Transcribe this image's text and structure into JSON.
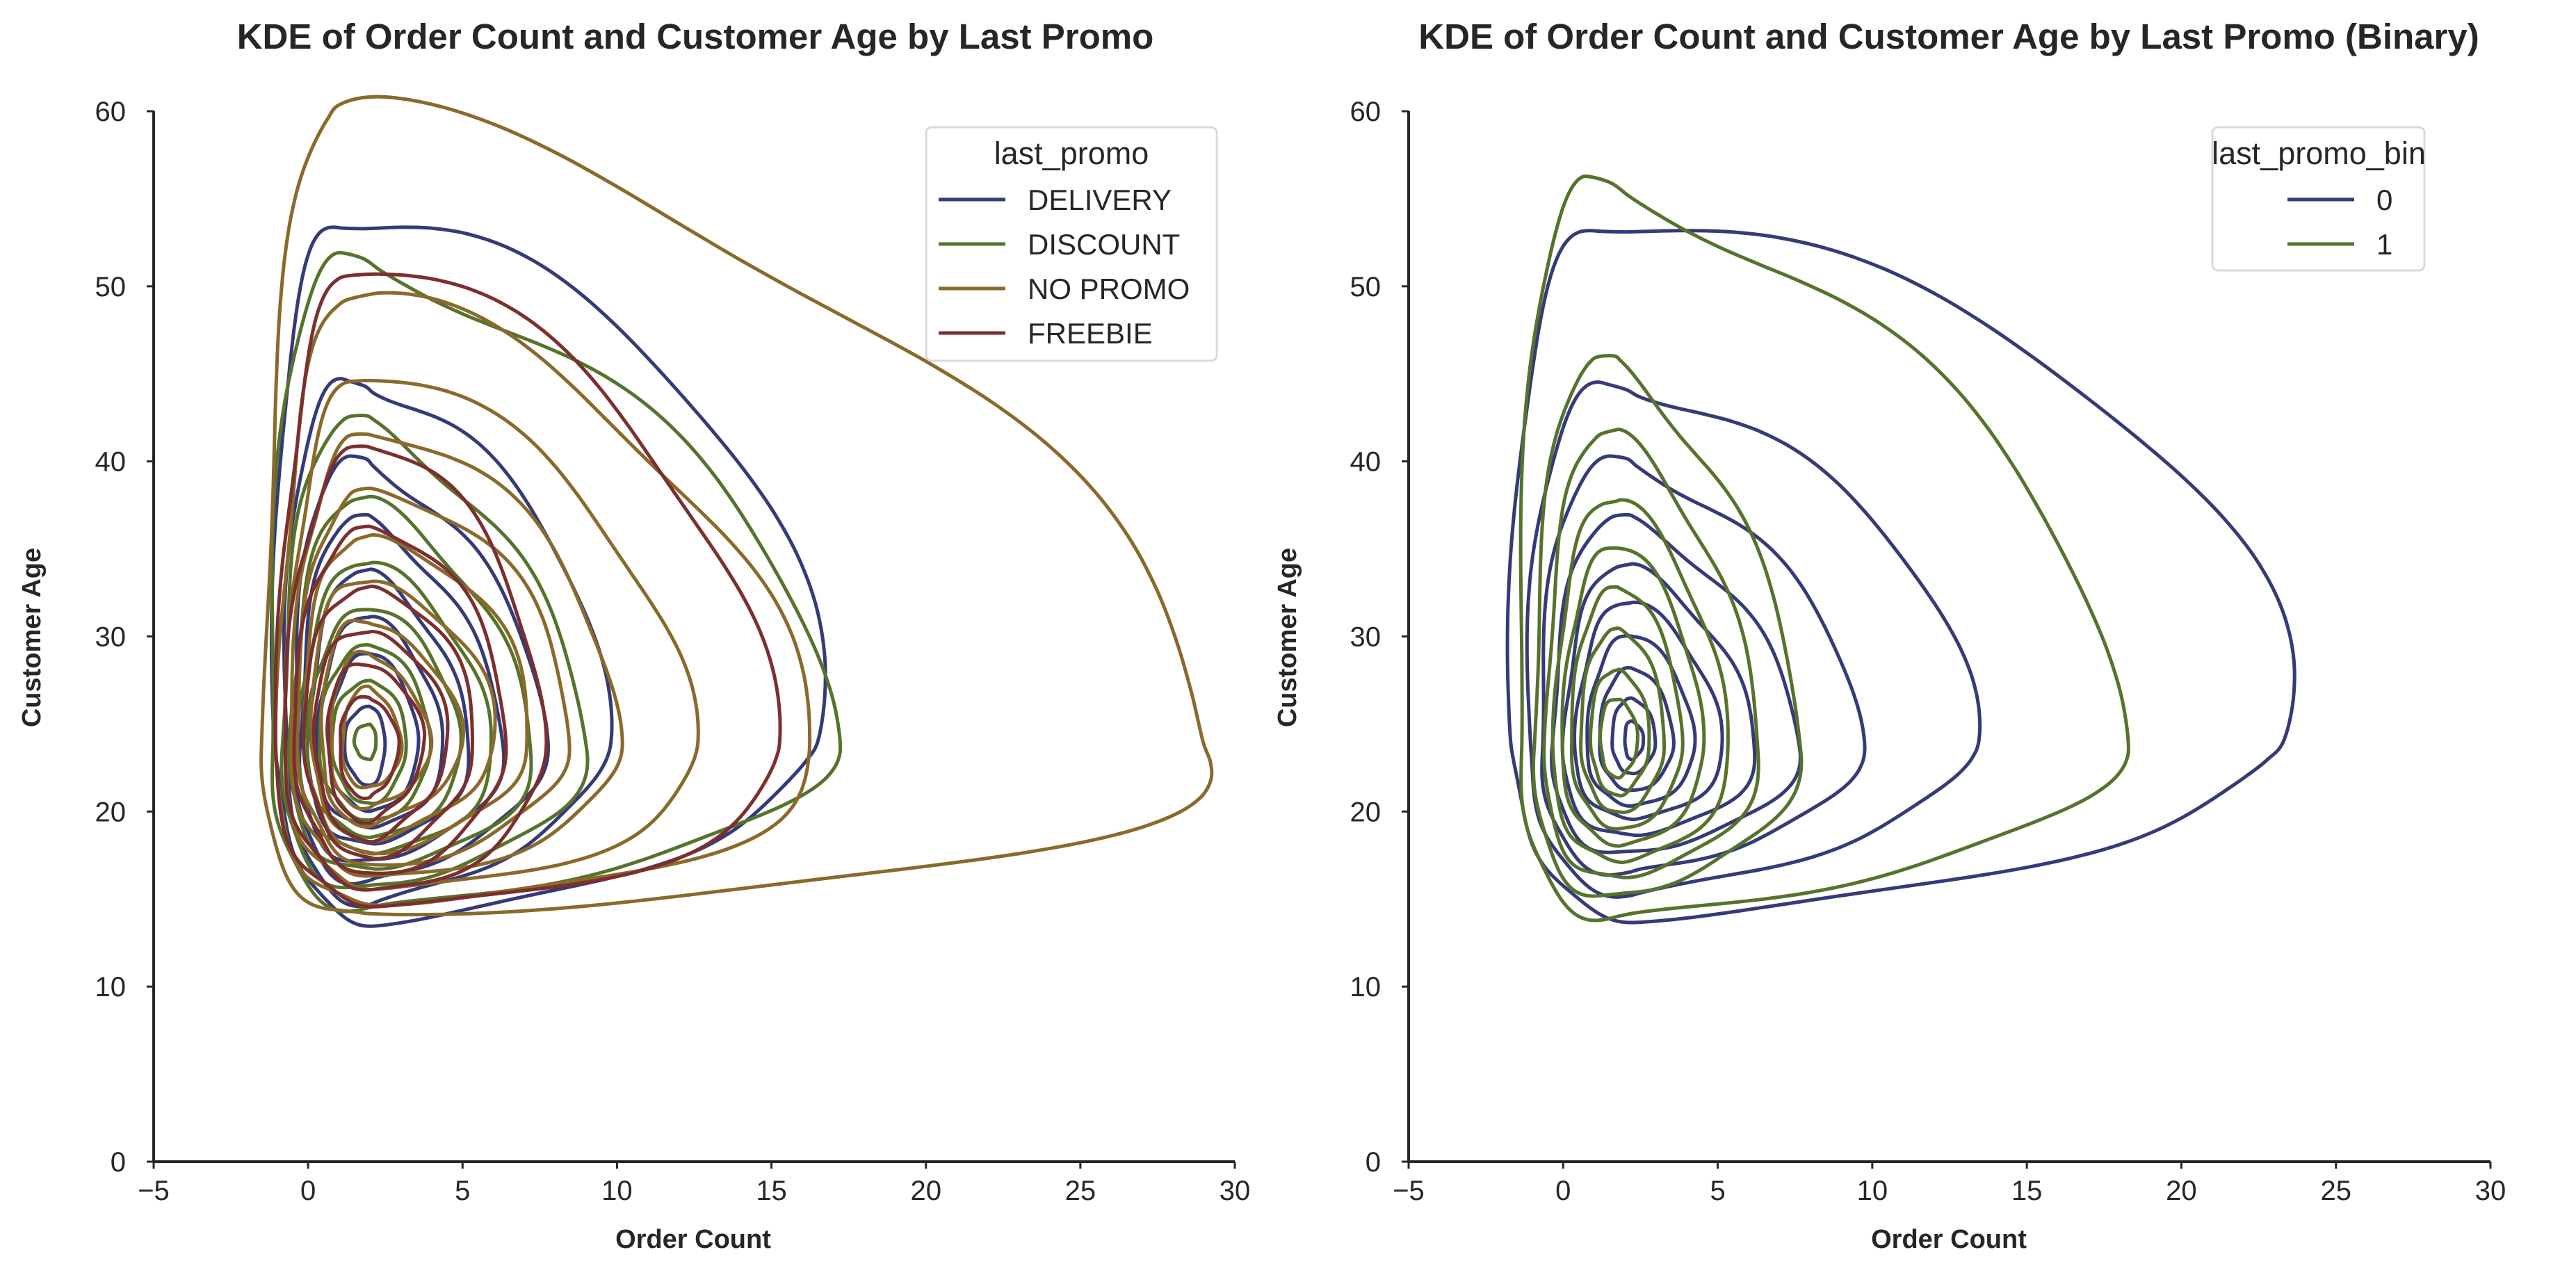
{
  "chart_data": [
    {
      "type": "kde-contour",
      "title": "KDE of Order Count and Customer Age by Last Promo",
      "xlabel": "Order Count",
      "ylabel": "Customer Age",
      "xlim": [
        -5,
        30
      ],
      "ylim": [
        0,
        60
      ],
      "xticks": [
        -5,
        0,
        5,
        10,
        15,
        20,
        25,
        30
      ],
      "yticks": [
        0,
        10,
        20,
        30,
        40,
        50,
        60
      ],
      "grid": false,
      "legend": {
        "title": "last_promo",
        "placement": "upper-right"
      },
      "series": [
        {
          "name": "DELIVERY",
          "color": "#353a78",
          "center": [
            2.0,
            24.0
          ],
          "contours": [
            {
              "xmin": -1.1,
              "xmax": 16.5,
              "ymin": 14.0,
              "ymax": 55.0
            },
            {
              "xmin": -0.8,
              "xmax": 9.5,
              "ymin": 15.0,
              "ymax": 45.0
            },
            {
              "xmin": -0.5,
              "xmax": 7.5,
              "ymin": 16.0,
              "ymax": 40.0
            },
            {
              "xmin": -0.3,
              "xmax": 6.2,
              "ymin": 17.0,
              "ymax": 36.5
            },
            {
              "xmin": 0.0,
              "xmax": 5.2,
              "ymin": 18.0,
              "ymax": 33.5
            },
            {
              "xmin": 0.3,
              "xmax": 4.4,
              "ymin": 19.0,
              "ymax": 31.0
            },
            {
              "xmin": 0.7,
              "xmax": 3.6,
              "ymin": 20.0,
              "ymax": 29.0
            },
            {
              "xmin": 1.2,
              "xmax": 2.5,
              "ymin": 21.5,
              "ymax": 26.0
            }
          ]
        },
        {
          "name": "DISCOUNT",
          "color": "#56732c",
          "center": [
            2.0,
            24.0
          ],
          "contours": [
            {
              "xmin": -1.3,
              "xmax": 16.5,
              "ymin": 14.5,
              "ymax": 51.5
            },
            {
              "xmin": -0.9,
              "xmax": 8.8,
              "ymin": 15.5,
              "ymax": 42.0
            },
            {
              "xmin": -0.6,
              "xmax": 7.2,
              "ymin": 16.5,
              "ymax": 37.5
            },
            {
              "xmin": -0.3,
              "xmax": 6.0,
              "ymin": 17.5,
              "ymax": 34.0
            },
            {
              "xmin": 0.0,
              "xmax": 5.0,
              "ymin": 18.5,
              "ymax": 31.5
            },
            {
              "xmin": 0.4,
              "xmax": 4.0,
              "ymin": 19.5,
              "ymax": 29.5
            },
            {
              "xmin": 0.8,
              "xmax": 3.2,
              "ymin": 20.5,
              "ymax": 27.5
            },
            {
              "xmin": 1.5,
              "xmax": 2.2,
              "ymin": 23.0,
              "ymax": 25.0
            }
          ]
        },
        {
          "name": "NO PROMO",
          "color": "#8a6a2a",
          "center": [
            2.0,
            24.0
          ],
          "contours": [
            {
              "xmin": -1.5,
              "xmax": 29.0,
              "ymin": 13.8,
              "ymax": 59.5
            },
            {
              "xmin": -1.0,
              "xmax": 16.5,
              "ymin": 14.5,
              "ymax": 49.0
            },
            {
              "xmin": -0.7,
              "xmax": 12.8,
              "ymin": 15.5,
              "ymax": 44.5
            },
            {
              "xmin": -0.5,
              "xmax": 10.3,
              "ymin": 16.3,
              "ymax": 41.5
            },
            {
              "xmin": -0.3,
              "xmax": 8.6,
              "ymin": 17.0,
              "ymax": 38.5
            },
            {
              "xmin": -0.1,
              "xmax": 7.2,
              "ymin": 17.8,
              "ymax": 36.0
            },
            {
              "xmin": 0.1,
              "xmax": 6.0,
              "ymin": 18.5,
              "ymax": 33.5
            },
            {
              "xmin": 0.4,
              "xmax": 4.9,
              "ymin": 19.3,
              "ymax": 31.0
            },
            {
              "xmin": 0.7,
              "xmax": 3.9,
              "ymin": 20.2,
              "ymax": 29.0
            },
            {
              "xmin": 1.1,
              "xmax": 3.0,
              "ymin": 21.3,
              "ymax": 27.0
            }
          ]
        },
        {
          "name": "FREEBIE",
          "color": "#7d2e2e",
          "center": [
            2.0,
            24.0
          ],
          "contours": [
            {
              "xmin": -1.0,
              "xmax": 15.5,
              "ymin": 14.5,
              "ymax": 50.5
            },
            {
              "xmin": -0.7,
              "xmax": 7.8,
              "ymin": 15.5,
              "ymax": 40.8
            },
            {
              "xmin": -0.4,
              "xmax": 6.5,
              "ymin": 16.5,
              "ymax": 36.3
            },
            {
              "xmin": -0.1,
              "xmax": 5.4,
              "ymin": 17.5,
              "ymax": 33.0
            },
            {
              "xmin": 0.2,
              "xmax": 4.5,
              "ymin": 18.5,
              "ymax": 30.5
            },
            {
              "xmin": 0.6,
              "xmax": 3.7,
              "ymin": 19.5,
              "ymax": 28.5
            },
            {
              "xmin": 1.0,
              "xmax": 2.9,
              "ymin": 20.8,
              "ymax": 26.5
            }
          ]
        }
      ]
    },
    {
      "type": "kde-contour",
      "title": "KDE of Order Count and Customer Age by Last Promo (Binary)",
      "xlabel": "Order Count",
      "ylabel": "Customer Age",
      "xlim": [
        -5,
        30
      ],
      "ylim": [
        0,
        60
      ],
      "xticks": [
        -5,
        0,
        5,
        10,
        15,
        20,
        25,
        30
      ],
      "yticks": [
        0,
        10,
        20,
        30,
        40,
        50,
        60
      ],
      "grid": false,
      "legend": {
        "title": "last_promo_bin",
        "placement": "upper-right"
      },
      "series": [
        {
          "name": "0",
          "color": "#353a78",
          "center": [
            2.2,
            24.0
          ],
          "contours": [
            {
              "xmin": -1.7,
              "xmax": 23.3,
              "ymin": 14.2,
              "ymax": 54.8
            },
            {
              "xmin": -1.2,
              "xmax": 13.0,
              "ymin": 15.5,
              "ymax": 44.8
            },
            {
              "xmin": -0.8,
              "xmax": 9.4,
              "ymin": 16.5,
              "ymax": 40.0
            },
            {
              "xmin": -0.4,
              "xmax": 7.5,
              "ymin": 17.5,
              "ymax": 36.5
            },
            {
              "xmin": 0.0,
              "xmax": 6.2,
              "ymin": 18.5,
              "ymax": 33.8
            },
            {
              "xmin": 0.4,
              "xmax": 5.2,
              "ymin": 19.5,
              "ymax": 31.8
            },
            {
              "xmin": 0.8,
              "xmax": 4.3,
              "ymin": 20.3,
              "ymax": 30.0
            },
            {
              "xmin": 1.2,
              "xmax": 3.6,
              "ymin": 21.2,
              "ymax": 28.2
            },
            {
              "xmin": 1.6,
              "xmax": 3.0,
              "ymin": 22.2,
              "ymax": 26.5
            },
            {
              "xmin": 2.0,
              "xmax": 2.6,
              "ymin": 23.0,
              "ymax": 25.2
            }
          ]
        },
        {
          "name": "1",
          "color": "#56732c",
          "center": [
            1.8,
            24.0
          ],
          "contours": [
            {
              "xmin": -1.5,
              "xmax": 17.5,
              "ymin": 14.0,
              "ymax": 55.8
            },
            {
              "xmin": -1.0,
              "xmax": 7.5,
              "ymin": 15.0,
              "ymax": 45.3
            },
            {
              "xmin": -0.6,
              "xmax": 6.3,
              "ymin": 16.0,
              "ymax": 41.2
            },
            {
              "xmin": -0.3,
              "xmax": 5.4,
              "ymin": 17.0,
              "ymax": 37.5
            },
            {
              "xmin": 0.0,
              "xmax": 4.6,
              "ymin": 18.0,
              "ymax": 35.0
            },
            {
              "xmin": 0.3,
              "xmax": 3.9,
              "ymin": 19.0,
              "ymax": 32.8
            },
            {
              "xmin": 0.6,
              "xmax": 3.3,
              "ymin": 20.0,
              "ymax": 30.5
            },
            {
              "xmin": 0.9,
              "xmax": 2.8,
              "ymin": 21.0,
              "ymax": 28.2
            },
            {
              "xmin": 1.2,
              "xmax": 2.4,
              "ymin": 22.0,
              "ymax": 26.5
            }
          ]
        }
      ]
    }
  ]
}
